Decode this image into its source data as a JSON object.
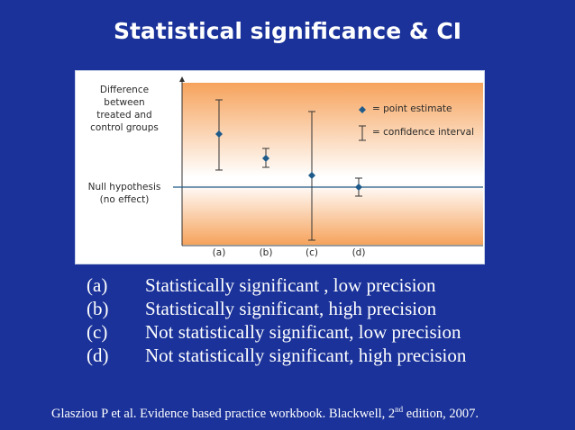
{
  "title": "Statistical significance & CI",
  "figure": {
    "y_axis_labels": {
      "top": [
        "Difference between",
        "treated and",
        "control groups"
      ],
      "middle": [
        "Null hypothesis",
        "(no effect)"
      ]
    },
    "legend": {
      "point_estimate": "= point estimate",
      "confidence_interval": "= confidence interval"
    },
    "categories": [
      "(a)",
      "(b)",
      "(c)",
      "(d)"
    ],
    "colors": {
      "gradient_top": "#f6a35c",
      "gradient_mid": "#ffffff",
      "gradient_bottom": "#f6a35c",
      "marker": "#1f5b8a",
      "null_line": "#1f5b8a"
    }
  },
  "items": [
    {
      "label": "(a)",
      "text": "Statistically significant , low precision"
    },
    {
      "label": "(b)",
      "text": "Statistically significant, high precision"
    },
    {
      "label": "(c)",
      "text": "Not statistically significant, low precision"
    },
    {
      "label": "(d)",
      "text": "Not statistically significant, high precision"
    }
  ],
  "citation": {
    "main": "Glasziou P et al. Evidence based practice workbook. Blackwell, 2",
    "sup": "nd",
    "tail": " edition,  2007."
  }
}
